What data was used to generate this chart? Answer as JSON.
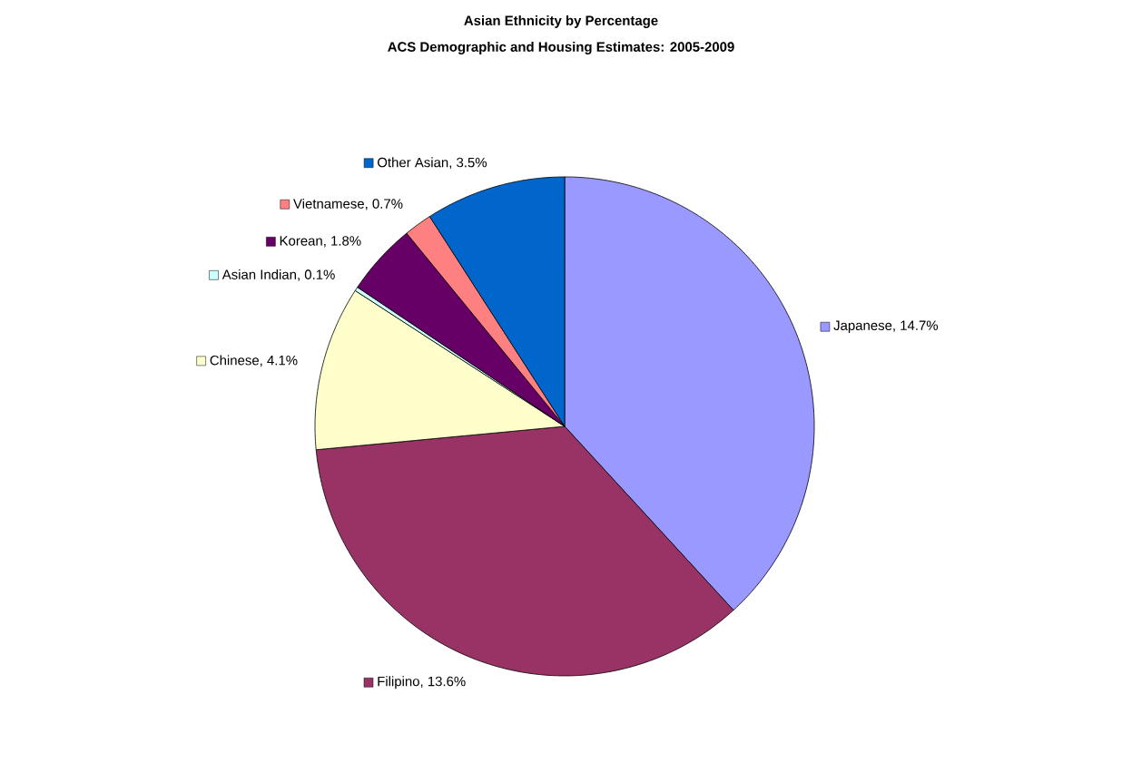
{
  "chart_data": {
    "type": "pie",
    "title": "Asian Ethnicity by Percentage",
    "subtitle": "ACS Demographic and Housing Estimates: 2005-2009",
    "categories": [
      "Japanese",
      "Filipino",
      "Chinese",
      "Asian Indian",
      "Korean",
      "Vietnamese",
      "Other Asian"
    ],
    "values": [
      14.7,
      13.6,
      4.1,
      0.1,
      1.8,
      0.7,
      3.5
    ],
    "value_labels": [
      ", 14.7%",
      ", 13.6%",
      ", 4.1%",
      ", 0.1%",
      ", 1.8%",
      ", 0.7%",
      ", 3.5%"
    ],
    "legend": "left",
    "colors": [
      "#9999ff",
      "#993366",
      "#ffffcc",
      "#ccffff",
      "#660066",
      "#ff8080",
      "#0066cc"
    ]
  }
}
